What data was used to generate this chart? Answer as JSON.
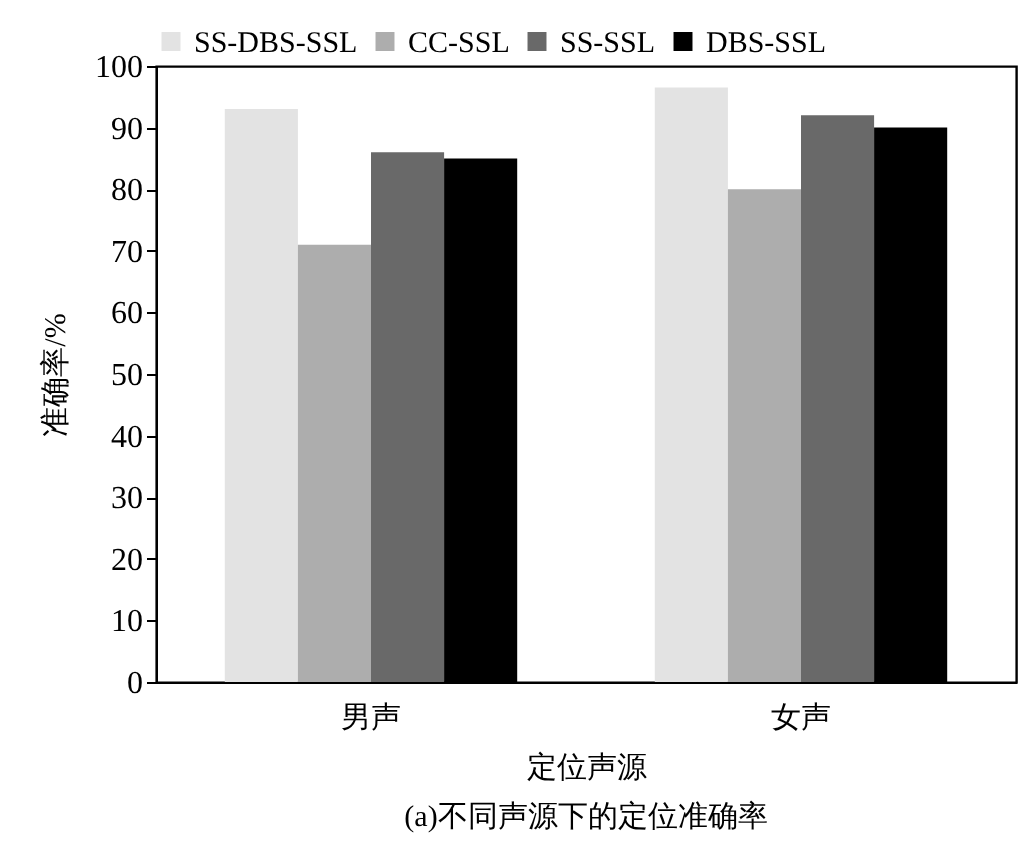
{
  "chart_data": {
    "type": "bar",
    "xlabel": "定位声源",
    "ylabel": "准确率/%",
    "categories": [
      "男声",
      "女声"
    ],
    "series": [
      {
        "name": "SS-DBS-SSL",
        "color": "#e3e3e3",
        "values": [
          93,
          96.5
        ]
      },
      {
        "name": "CC-SSL",
        "color": "#adadad",
        "values": [
          71,
          80
        ]
      },
      {
        "name": "SS-SSL",
        "color": "#696969",
        "values": [
          86,
          92
        ]
      },
      {
        "name": "DBS-SSL",
        "color": "#000000",
        "values": [
          85,
          90
        ]
      }
    ],
    "ylim": [
      0,
      100
    ],
    "yticks": [
      0,
      10,
      20,
      30,
      40,
      50,
      60,
      70,
      80,
      90,
      100
    ],
    "grid": false,
    "legend": "top",
    "annotations": [
      "(a)不同声源下的定位准确率"
    ]
  }
}
